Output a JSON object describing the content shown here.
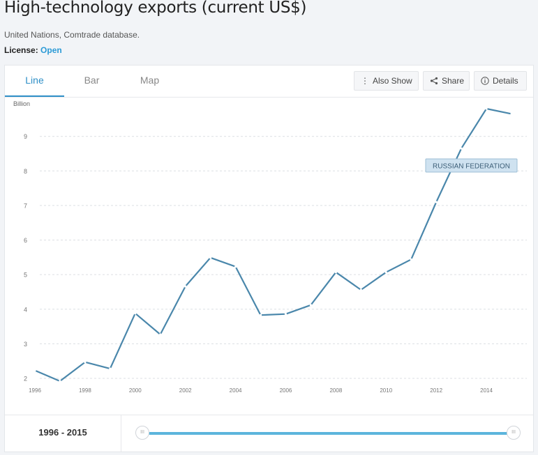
{
  "header": {
    "title": "High-technology exports (current US$)",
    "source": "United Nations, Comtrade database.",
    "license_label": "License: ",
    "license_value": "Open"
  },
  "tabs": [
    {
      "label": "Line",
      "active": true
    },
    {
      "label": "Bar",
      "active": false
    },
    {
      "label": "Map",
      "active": false
    }
  ],
  "toolbar": {
    "also_show": "Also Show",
    "share": "Share",
    "details": "Details"
  },
  "colors": {
    "line": "#4a87ab",
    "accent": "#2e8fc7",
    "label_bg": "#cfe2f0"
  },
  "chart_data": {
    "type": "line",
    "unit_label": "Billion",
    "series": [
      {
        "name": "RUSSIAN FEDERATION",
        "x": [
          1996,
          1997,
          1998,
          1999,
          2000,
          2001,
          2002,
          2003,
          2004,
          2005,
          2006,
          2007,
          2008,
          2009,
          2010,
          2011,
          2012,
          2013,
          2014,
          2015
        ],
        "values": [
          2.23,
          1.92,
          2.47,
          2.28,
          3.88,
          3.27,
          4.66,
          5.49,
          5.23,
          3.83,
          3.86,
          4.12,
          5.07,
          4.56,
          5.07,
          5.44,
          7.1,
          8.65,
          9.8,
          9.65
        ]
      }
    ],
    "x_ticks": [
      "1996",
      "1998",
      "2000",
      "2002",
      "2004",
      "2006",
      "2008",
      "2010",
      "2012",
      "2014"
    ],
    "y_ticks": [
      "2",
      "3",
      "4",
      "5",
      "6",
      "7",
      "8",
      "9"
    ],
    "xlim": [
      1996,
      2015
    ],
    "ylim": [
      2,
      9.8
    ],
    "grid": true
  },
  "footer": {
    "range_text": "1996 - 2015",
    "slider_start": "1996",
    "slider_end": "2015"
  }
}
